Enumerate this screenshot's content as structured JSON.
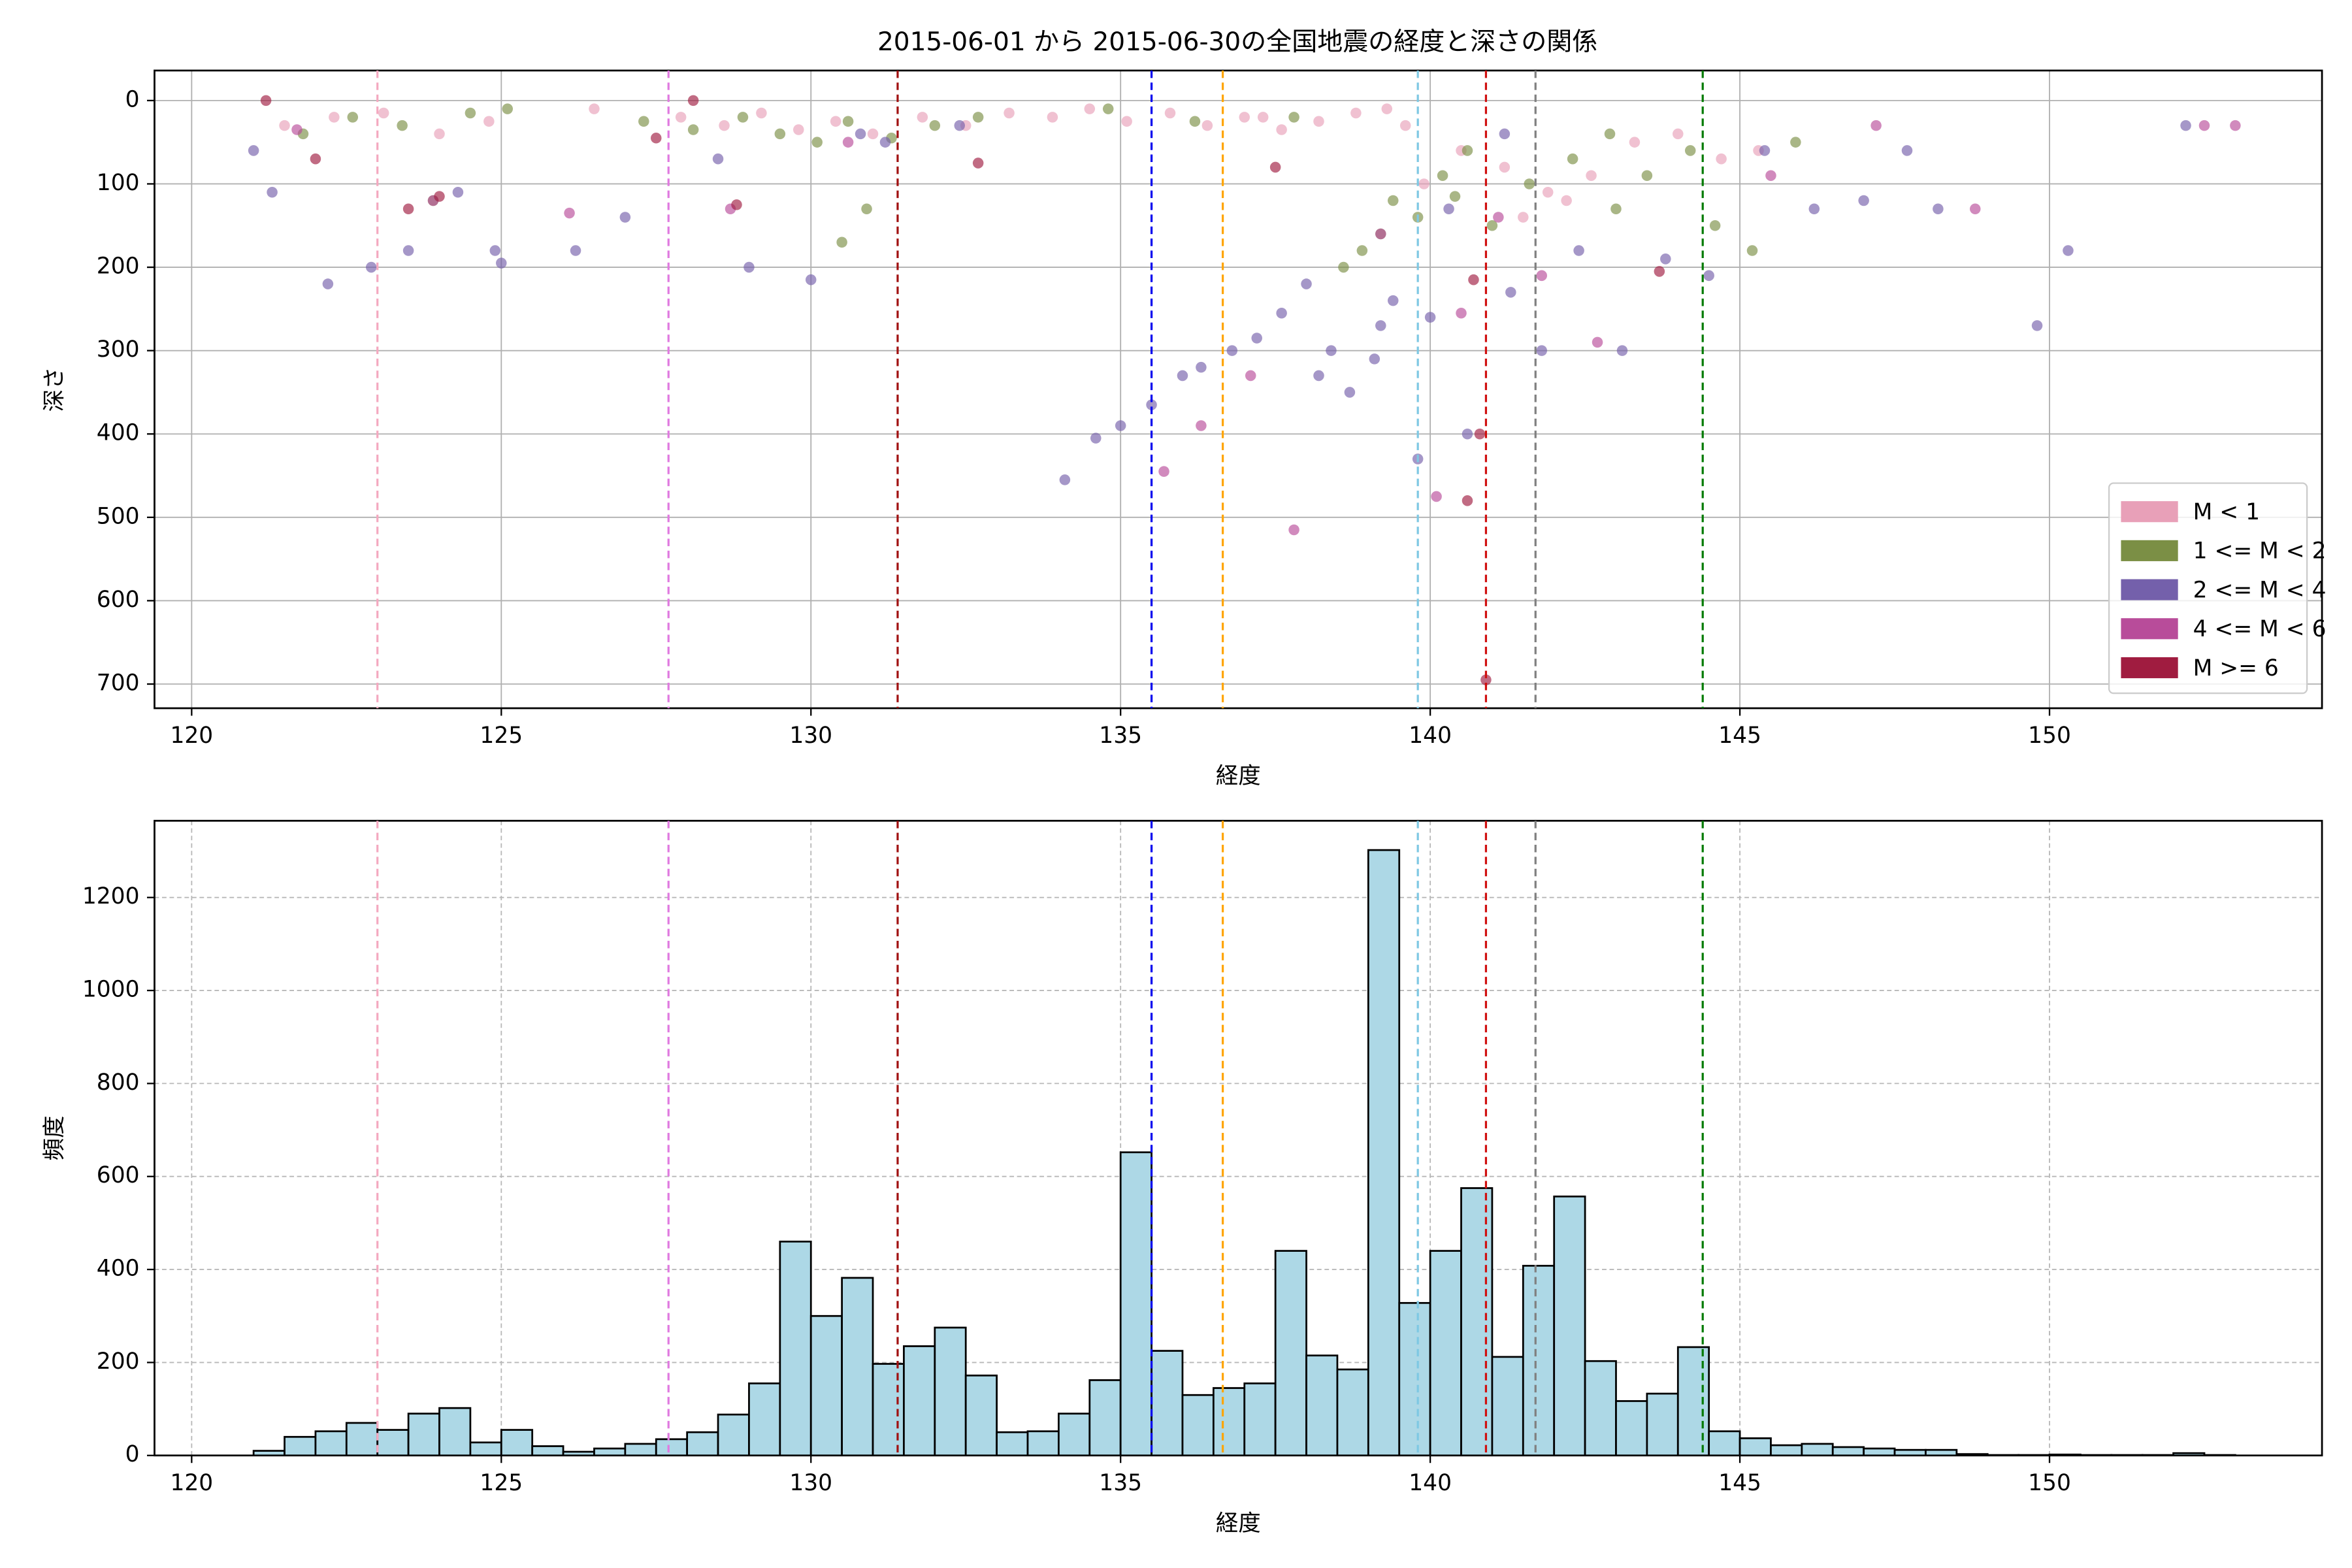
{
  "chart_data": [
    {
      "type": "scatter",
      "title": "2015-06-01 から 2015-06-30の全国地震の経度と深さの関係",
      "xlabel": "経度",
      "ylabel": "深さ",
      "xlim": [
        119.4,
        154.4
      ],
      "ylim": [
        729,
        -36
      ],
      "xticks": [
        120,
        125,
        130,
        135,
        140,
        145,
        150
      ],
      "yticks": [
        0,
        100,
        200,
        300,
        400,
        500,
        600,
        700
      ],
      "grid": true,
      "grid_style": "solid",
      "legend": "lower right",
      "alpha": 0.65,
      "reference_lines": [
        {
          "value": 123.0,
          "color": "#f4a9c0"
        },
        {
          "value": 127.7,
          "color": "#e07ae0"
        },
        {
          "value": 131.4,
          "color": "#a01010"
        },
        {
          "value": 135.5,
          "color": "#0000ee"
        },
        {
          "value": 136.65,
          "color": "#ffa500"
        },
        {
          "value": 139.8,
          "color": "#7ec8e3"
        },
        {
          "value": 140.9,
          "color": "#d01010"
        },
        {
          "value": 141.7,
          "color": "#808080"
        },
        {
          "value": 144.4,
          "color": "#007a00"
        }
      ],
      "series": [
        {
          "name": "M < 1",
          "color": "#e8a0b8",
          "x": [
            121.5,
            122.3,
            123.1,
            124.0,
            124.8,
            126.5,
            127.9,
            128.6,
            129.2,
            129.8,
            130.4,
            131.0,
            131.8,
            132.5,
            133.2,
            133.9,
            134.5,
            135.1,
            135.8,
            136.4,
            137.0,
            137.6,
            138.2,
            138.8,
            139.3,
            139.9,
            140.5,
            141.2,
            141.9,
            142.6,
            143.3,
            144.0,
            144.7,
            145.3,
            141.5,
            142.2,
            139.6,
            137.3
          ],
          "values": [
            30,
            20,
            15,
            40,
            25,
            10,
            20,
            30,
            15,
            35,
            25,
            40,
            20,
            30,
            15,
            20,
            10,
            25,
            15,
            30,
            20,
            35,
            25,
            15,
            10,
            100,
            60,
            80,
            110,
            90,
            50,
            40,
            70,
            60,
            140,
            120,
            30,
            20
          ]
        },
        {
          "name": "1 <= M < 2",
          "color": "#7b8f45",
          "x": [
            121.8,
            122.6,
            123.4,
            123.9,
            124.5,
            125.1,
            127.3,
            128.1,
            128.9,
            129.5,
            130.1,
            130.6,
            130.9,
            131.3,
            132.0,
            132.7,
            134.8,
            136.2,
            137.8,
            138.9,
            139.4,
            139.8,
            140.2,
            140.6,
            141.0,
            141.6,
            142.3,
            142.9,
            143.5,
            144.2,
            144.6,
            145.2,
            145.9,
            139.2,
            138.6,
            140.4,
            143.0,
            130.5
          ],
          "values": [
            40,
            20,
            30,
            120,
            15,
            10,
            25,
            35,
            20,
            40,
            50,
            25,
            130,
            45,
            30,
            20,
            10,
            25,
            20,
            180,
            120,
            140,
            90,
            60,
            150,
            100,
            70,
            40,
            90,
            60,
            150,
            180,
            50,
            160,
            200,
            115,
            130,
            170
          ]
        },
        {
          "name": "2 <= M < 4",
          "color": "#7460ab",
          "x": [
            121.0,
            121.3,
            122.2,
            122.9,
            123.5,
            124.3,
            124.9,
            125.0,
            126.2,
            127.0,
            128.5,
            129.0,
            130.0,
            130.8,
            131.2,
            132.4,
            134.1,
            134.6,
            135.0,
            135.5,
            136.0,
            136.3,
            136.8,
            137.2,
            137.6,
            138.0,
            138.4,
            138.7,
            139.1,
            139.4,
            139.8,
            140.3,
            140.6,
            141.3,
            141.8,
            142.4,
            143.1,
            143.8,
            144.5,
            145.4,
            146.2,
            147.0,
            147.7,
            148.2,
            149.8,
            150.3,
            152.2,
            141.2,
            139.2,
            138.2,
            140.0
          ],
          "values": [
            60,
            110,
            220,
            200,
            180,
            110,
            180,
            195,
            180,
            140,
            70,
            200,
            215,
            40,
            50,
            30,
            455,
            405,
            390,
            365,
            330,
            320,
            300,
            285,
            255,
            220,
            300,
            350,
            310,
            240,
            430,
            130,
            400,
            230,
            300,
            180,
            300,
            190,
            210,
            60,
            130,
            120,
            60,
            130,
            270,
            180,
            30,
            40,
            270,
            330,
            260
          ]
        },
        {
          "name": "4 <= M < 6",
          "color": "#b84c9a",
          "x": [
            121.7,
            123.9,
            126.1,
            128.7,
            130.6,
            137.1,
            137.8,
            139.2,
            140.1,
            140.5,
            141.1,
            141.8,
            142.7,
            145.5,
            147.2,
            148.8,
            152.5,
            153.0,
            136.3,
            135.7
          ],
          "values": [
            35,
            120,
            135,
            130,
            50,
            330,
            515,
            160,
            475,
            255,
            140,
            210,
            290,
            90,
            30,
            130,
            30,
            30,
            390,
            445
          ]
        },
        {
          "name": "M >= 6",
          "color": "#a01c40",
          "x": [
            121.2,
            122.0,
            123.5,
            124.0,
            127.5,
            128.1,
            128.8,
            132.7,
            137.5,
            140.6,
            140.8,
            140.9,
            143.7,
            140.7
          ],
          "values": [
            0,
            70,
            130,
            115,
            45,
            0,
            125,
            75,
            80,
            480,
            400,
            695,
            205,
            215
          ]
        }
      ]
    },
    {
      "type": "histogram",
      "xlabel": "経度",
      "ylabel": "頻度",
      "xlim": [
        119.4,
        154.4
      ],
      "ylim": [
        0,
        1365
      ],
      "xticks": [
        120,
        125,
        130,
        135,
        140,
        145,
        150
      ],
      "yticks": [
        0,
        200,
        400,
        600,
        800,
        1000,
        1200
      ],
      "grid": true,
      "grid_style": "dashed",
      "color": "#add8e6",
      "edgecolor": "#000000",
      "reference_lines": [
        {
          "value": 123.0,
          "color": "#f4a9c0"
        },
        {
          "value": 127.7,
          "color": "#e07ae0"
        },
        {
          "value": 131.4,
          "color": "#a01010"
        },
        {
          "value": 135.5,
          "color": "#0000ee"
        },
        {
          "value": 136.65,
          "color": "#ffa500"
        },
        {
          "value": 139.8,
          "color": "#7ec8e3"
        },
        {
          "value": 140.9,
          "color": "#d01010"
        },
        {
          "value": 141.7,
          "color": "#808080"
        },
        {
          "value": 144.4,
          "color": "#007a00"
        }
      ],
      "bins": [
        121,
        121.5,
        122,
        122.5,
        123,
        123.5,
        124,
        124.5,
        125,
        125.5,
        126,
        126.5,
        127,
        127.5,
        128,
        128.5,
        129,
        129.5,
        130,
        130.5,
        131,
        131.5,
        132,
        132.5,
        133,
        133.5,
        134,
        134.5,
        135,
        135.5,
        136,
        136.5,
        137,
        137.5,
        138,
        138.5,
        139,
        139.5,
        140,
        140.5,
        141,
        141.5,
        142,
        142.5,
        143,
        143.5,
        144,
        144.5,
        145,
        145.5,
        146,
        146.5,
        147,
        147.5,
        148,
        148.5,
        149,
        149.5,
        150,
        150.5,
        151,
        151.5,
        152,
        152.5,
        153
      ],
      "values": [
        10,
        40,
        52,
        70,
        55,
        90,
        102,
        28,
        55,
        20,
        8,
        15,
        25,
        35,
        50,
        88,
        155,
        460,
        300,
        382,
        197,
        235,
        275,
        172,
        50,
        52,
        90,
        162,
        652,
        225,
        130,
        145,
        155,
        440,
        215,
        185,
        1302,
        328,
        440,
        575,
        212,
        408,
        557,
        203,
        117,
        133,
        233,
        52,
        37,
        22,
        25,
        18,
        15,
        12,
        12,
        3,
        1,
        1,
        2,
        1,
        1,
        1,
        5,
        1
      ]
    }
  ]
}
